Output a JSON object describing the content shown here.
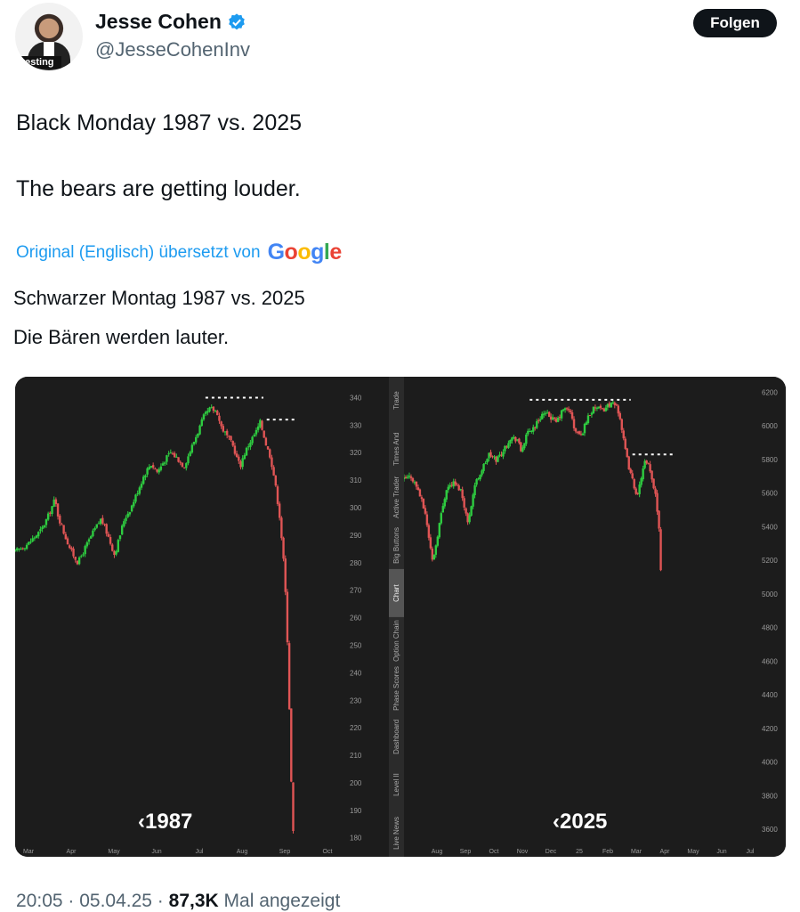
{
  "header": {
    "name": "Jesse Cohen",
    "handle": "@JesseCohenInv",
    "avatar_tag": "vesting",
    "follow_label": "Folgen"
  },
  "tweet": {
    "line1": "Black Monday 1987 vs. 2025",
    "line2": "The bears are getting louder."
  },
  "translation": {
    "notice": "Original (Englisch) übersetzt von",
    "provider": [
      "G",
      "o",
      "o",
      "g",
      "l",
      "e"
    ],
    "line1": "Schwarzer Montag 1987 vs. 2025",
    "line2": "Die Bären werden lauter."
  },
  "sidebar": {
    "items": [
      "Trade",
      "Times And Sales",
      "Active Trader",
      "Big Buttons",
      "Chart",
      "Option Chain",
      "Phase Scores",
      "Dashboard",
      "Level II",
      "Live News"
    ],
    "active": "Chart"
  },
  "chart_data": [
    {
      "type": "candlestick",
      "label": "1987",
      "x_ticks": [
        "Mar",
        "Apr",
        "May",
        "Jun",
        "Jul",
        "Aug",
        "Sep",
        "Oct"
      ],
      "y_ticks": [
        340,
        330,
        320,
        310,
        300,
        290,
        280,
        270,
        260,
        250,
        240,
        230,
        220,
        210,
        200,
        190,
        180
      ],
      "ylim": [
        177,
        345
      ],
      "path": [
        [
          0,
          284
        ],
        [
          4,
          287
        ],
        [
          8,
          292
        ],
        [
          10,
          297
        ],
        [
          12,
          303
        ],
        [
          13,
          297
        ],
        [
          15,
          290
        ],
        [
          17,
          284
        ],
        [
          19,
          280
        ],
        [
          21,
          285
        ],
        [
          24,
          292
        ],
        [
          26,
          296
        ],
        [
          28,
          290
        ],
        [
          30,
          283
        ],
        [
          31,
          287
        ],
        [
          33,
          296
        ],
        [
          35,
          300
        ],
        [
          37,
          306
        ],
        [
          39,
          312
        ],
        [
          41,
          316
        ],
        [
          43,
          313
        ],
        [
          45,
          317
        ],
        [
          47,
          320
        ],
        [
          49,
          318
        ],
        [
          51,
          315
        ],
        [
          53,
          321
        ],
        [
          55,
          327
        ],
        [
          57,
          333
        ],
        [
          59,
          336
        ],
        [
          61,
          335
        ],
        [
          62,
          330
        ],
        [
          64,
          326
        ],
        [
          66,
          322
        ],
        [
          67,
          318
        ],
        [
          68,
          315
        ],
        [
          69,
          319
        ],
        [
          71,
          324
        ],
        [
          73,
          328
        ],
        [
          74,
          331
        ],
        [
          75,
          327
        ],
        [
          76,
          322
        ],
        [
          77,
          319
        ],
        [
          78,
          313
        ],
        [
          79,
          305
        ],
        [
          80,
          296
        ],
        [
          81,
          282
        ],
        [
          82,
          262
        ],
        [
          83,
          220
        ],
        [
          83.5,
          196
        ],
        [
          84,
          182
        ]
      ],
      "resistance": [
        {
          "x1": 57.5,
          "x2": 75,
          "y": 340
        },
        {
          "x1": 76,
          "x2": 84.5,
          "y": 332
        }
      ]
    },
    {
      "type": "candlestick",
      "label": "2025",
      "x_ticks": [
        "Aug",
        "Sep",
        "Oct",
        "Nov",
        "Dec",
        "25",
        "Feb",
        "Mar",
        "Apr",
        "May",
        "Jun",
        "Jul"
      ],
      "y_ticks": [
        6200,
        6000,
        5800,
        5600,
        5400,
        5200,
        5000,
        4800,
        4600,
        4400,
        4200,
        4000,
        3800,
        3600
      ],
      "ylim": [
        3500,
        6250
      ],
      "path": [
        [
          0,
          5680
        ],
        [
          2,
          5700
        ],
        [
          4,
          5620
        ],
        [
          6,
          5480
        ],
        [
          8,
          5200
        ],
        [
          9,
          5290
        ],
        [
          10,
          5420
        ],
        [
          12,
          5630
        ],
        [
          14,
          5660
        ],
        [
          16,
          5620
        ],
        [
          17,
          5530
        ],
        [
          18,
          5420
        ],
        [
          20,
          5650
        ],
        [
          22,
          5740
        ],
        [
          24,
          5830
        ],
        [
          26,
          5800
        ],
        [
          28,
          5850
        ],
        [
          30,
          5930
        ],
        [
          32,
          5920
        ],
        [
          33,
          5850
        ],
        [
          35,
          5960
        ],
        [
          37,
          6000
        ],
        [
          39,
          6070
        ],
        [
          41,
          6060
        ],
        [
          43,
          6020
        ],
        [
          45,
          6100
        ],
        [
          47,
          6090
        ],
        [
          48,
          5980
        ],
        [
          50,
          5940
        ],
        [
          52,
          6060
        ],
        [
          54,
          6110
        ],
        [
          56,
          6090
        ],
        [
          58,
          6130
        ],
        [
          60,
          6120
        ],
        [
          61,
          6050
        ],
        [
          62,
          5910
        ],
        [
          63,
          5800
        ],
        [
          64,
          5710
        ],
        [
          65,
          5640
        ],
        [
          66,
          5580
        ],
        [
          67,
          5700
        ],
        [
          68,
          5780
        ],
        [
          69,
          5760
        ],
        [
          70,
          5680
        ],
        [
          71,
          5600
        ],
        [
          72,
          5400
        ],
        [
          72.5,
          5150
        ]
      ],
      "resistance": [
        {
          "x1": 35.5,
          "x2": 64,
          "y": 6155
        },
        {
          "x1": 64.5,
          "x2": 76,
          "y": 5830
        }
      ]
    }
  ],
  "footer": {
    "time": "20:05 · 05.04.25 ·",
    "views": "87,3K",
    "views_label": "Mal angezeigt"
  },
  "colors": {
    "accent": "#1d9bf0",
    "up_candle": "#2ecc40",
    "down_candle": "#e05555",
    "chart_bg": "#1c1c1c"
  }
}
